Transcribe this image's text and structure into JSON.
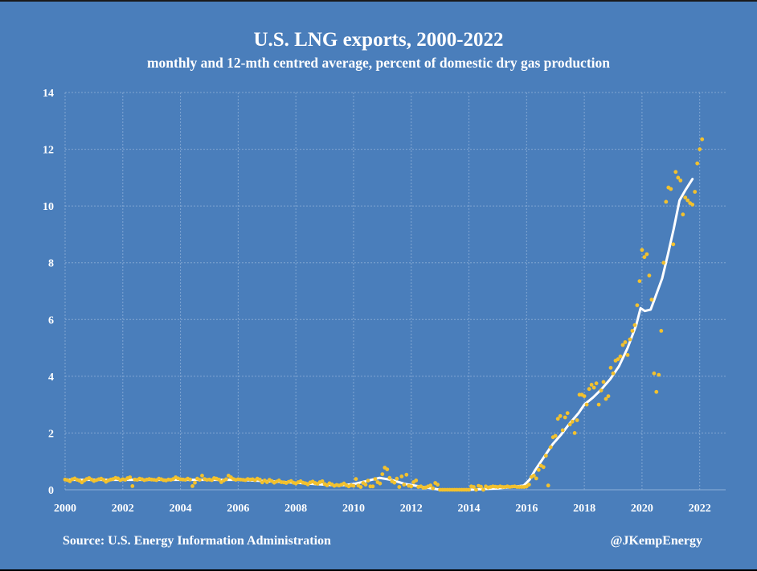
{
  "chart_data": {
    "type": "scatter",
    "title": "U.S. LNG exports, 2000-2022",
    "subtitle": "monthly and 12-mth centred average, percent of domestic dry gas production",
    "xlabel": "",
    "ylabel": "",
    "xlim": [
      2000,
      2022.9
    ],
    "ylim": [
      0,
      14
    ],
    "x_ticks": [
      2000,
      2002,
      2004,
      2006,
      2008,
      2010,
      2012,
      2014,
      2016,
      2018,
      2020,
      2022
    ],
    "x_tick_labels": [
      "2000",
      "2002",
      "2004",
      "2006",
      "2008",
      "2010",
      "2012",
      "2014",
      "2016",
      "2018",
      "2020",
      "2022"
    ],
    "y_ticks": [
      0,
      2,
      4,
      6,
      8,
      10,
      12,
      14
    ],
    "y_tick_labels": [
      "0",
      "2",
      "4",
      "6",
      "8",
      "10",
      "12",
      "14"
    ],
    "grid": true,
    "colors": {
      "background": "#4a7ebb",
      "grid": "#8fb0d8",
      "monthly": "#f2c12e",
      "average": "#ffffff"
    },
    "series": [
      {
        "name": "monthly",
        "style": "points",
        "start": 2000.0,
        "step": 0.083333,
        "values": [
          0.36,
          0.34,
          0.3,
          0.37,
          0.4,
          0.35,
          0.32,
          0.26,
          0.33,
          0.38,
          0.41,
          0.36,
          0.31,
          0.34,
          0.37,
          0.39,
          0.35,
          0.28,
          0.33,
          0.36,
          0.38,
          0.42,
          0.4,
          0.34,
          0.37,
          0.35,
          0.41,
          0.44,
          0.13,
          0.36,
          0.35,
          0.39,
          0.37,
          0.34,
          0.36,
          0.38,
          0.36,
          0.35,
          0.34,
          0.39,
          0.37,
          0.34,
          0.33,
          0.36,
          0.35,
          0.38,
          0.44,
          0.4,
          0.37,
          0.36,
          0.35,
          0.39,
          0.36,
          0.13,
          0.25,
          0.39,
          0.35,
          0.5,
          0.38,
          0.35,
          0.36,
          0.34,
          0.41,
          0.39,
          0.36,
          0.27,
          0.33,
          0.37,
          0.5,
          0.44,
          0.38,
          0.35,
          0.37,
          0.36,
          0.35,
          0.34,
          0.38,
          0.36,
          0.37,
          0.34,
          0.39,
          0.36,
          0.26,
          0.33,
          0.27,
          0.35,
          0.31,
          0.25,
          0.29,
          0.33,
          0.27,
          0.26,
          0.24,
          0.28,
          0.31,
          0.25,
          0.22,
          0.27,
          0.3,
          0.25,
          0.23,
          0.19,
          0.26,
          0.29,
          0.24,
          0.21,
          0.27,
          0.3,
          0.2,
          0.16,
          0.23,
          0.19,
          0.14,
          0.17,
          0.15,
          0.18,
          0.22,
          0.16,
          0.12,
          0.16,
          0.14,
          0.38,
          0.15,
          0.1,
          0.24,
          0.18,
          0.32,
          0.12,
          0.12,
          0.38,
          0.27,
          0.22,
          0.55,
          0.78,
          0.72,
          0.42,
          0.3,
          0.25,
          0.39,
          0.1,
          0.47,
          0.18,
          0.53,
          0.14,
          0.12,
          0.27,
          0.33,
          0.1,
          0.12,
          0.07,
          0.08,
          0.12,
          0.15,
          0.05,
          0.24,
          0.18,
          0.0,
          0.0,
          0.0,
          0.0,
          0.0,
          0.0,
          0.0,
          0.0,
          0.0,
          0.0,
          0.0,
          0.0,
          0.0,
          0.12,
          0.1,
          0.0,
          0.14,
          0.11,
          0.0,
          0.12,
          0.08,
          0.1,
          0.12,
          0.11,
          0.1,
          0.12,
          0.1,
          0.1,
          0.12,
          0.1,
          0.11,
          0.12,
          0.1,
          0.1,
          0.1,
          0.1,
          0.12,
          0.18,
          0.45,
          0.5,
          0.4,
          0.7,
          0.85,
          0.8,
          1.2,
          0.15,
          1.5,
          1.85,
          1.9,
          2.5,
          2.6,
          2.1,
          2.55,
          2.7,
          2.3,
          2.4,
          2.0,
          2.45,
          3.35,
          3.35,
          3.3,
          3.0,
          3.55,
          3.7,
          3.6,
          3.75,
          3.0,
          3.5,
          3.8,
          3.2,
          3.3,
          4.3,
          4.1,
          4.55,
          4.6,
          4.7,
          5.1,
          5.2,
          4.75,
          5.3,
          5.6,
          5.8,
          6.5,
          7.35,
          8.45,
          8.2,
          8.3,
          7.55,
          6.7,
          4.1,
          3.45,
          4.05,
          5.6,
          8.0,
          10.15,
          10.65,
          10.6,
          8.65,
          11.2,
          11.0,
          10.9,
          9.7,
          10.3,
          10.2,
          10.1,
          10.05,
          10.5,
          11.5,
          12.0,
          12.35
        ]
      },
      {
        "name": "12-mth centred average",
        "style": "line",
        "x": [
          2000.0,
          2002.0,
          2004.0,
          2006.0,
          2007.5,
          2009.0,
          2009.5,
          2010.0,
          2010.5,
          2010.9,
          2011.3,
          2011.8,
          2012.3,
          2012.7,
          2013.0,
          2014.0,
          2015.0,
          2015.5,
          2015.9,
          2016.1,
          2016.3,
          2016.6,
          2016.9,
          2017.2,
          2017.5,
          2017.8,
          2018.0,
          2018.3,
          2018.6,
          2018.9,
          2019.2,
          2019.5,
          2019.8,
          2019.95,
          2020.1,
          2020.3,
          2020.5,
          2020.7,
          2020.9,
          2021.1,
          2021.3,
          2021.5,
          2021.75
        ],
        "y": [
          0.35,
          0.35,
          0.35,
          0.35,
          0.28,
          0.18,
          0.15,
          0.2,
          0.32,
          0.42,
          0.35,
          0.2,
          0.12,
          0.05,
          0.0,
          0.0,
          0.05,
          0.1,
          0.15,
          0.35,
          0.7,
          1.15,
          1.6,
          1.95,
          2.35,
          2.7,
          3.0,
          3.25,
          3.55,
          3.9,
          4.35,
          5.0,
          5.8,
          6.4,
          6.3,
          6.35,
          6.9,
          7.45,
          8.3,
          9.2,
          10.2,
          10.55,
          10.95
        ]
      }
    ]
  },
  "footer": {
    "source": "Source: U.S. Energy Information Administration",
    "credit": "@JKempEnergy"
  }
}
